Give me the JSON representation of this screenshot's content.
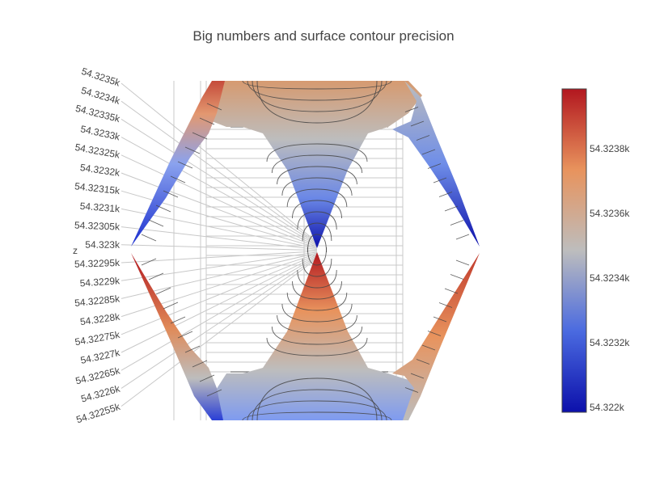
{
  "chart_data": {
    "type": "surface",
    "title": "Big numbers and surface contour precision",
    "z_axis": {
      "label": "z",
      "ticks": [
        "54.3235k",
        "54.3234k",
        "54.32335k",
        "54.3233k",
        "54.32325k",
        "54.3232k",
        "54.32315k",
        "54.3231k",
        "54.32305k",
        "54.323k",
        "54.32295k",
        "54.3229k",
        "54.32285k",
        "54.3228k",
        "54.32275k",
        "54.3227k",
        "54.32265k",
        "54.3226k",
        "54.32255k"
      ],
      "range": [
        54322.5,
        54323.5
      ]
    },
    "colorbar": {
      "colorscale": "coolwarm",
      "colors": [
        "#0c10ab",
        "#4a6ae0",
        "#bdbdbd",
        "#e8935d",
        "#b2171f"
      ],
      "ticks": [
        "54.3238k",
        "54.3236k",
        "54.3234k",
        "54.3232k",
        "54.322k"
      ],
      "range": [
        54322.0,
        54324.0
      ]
    },
    "surface": {
      "description_values": {
        "z_min": 54322.0,
        "z_max": 54324.0
      },
      "contours": true
    }
  }
}
